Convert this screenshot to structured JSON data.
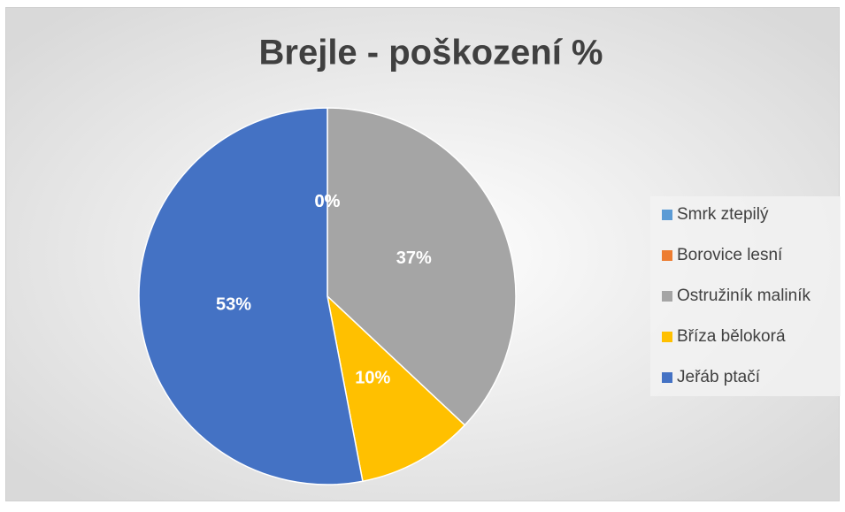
{
  "chart_data": {
    "type": "pie",
    "title": "Brejle - poškození %",
    "categories": [
      "Smrk ztepilý",
      "Borovice lesní",
      "Ostružiník maliník",
      "Bříza bělokorá",
      "Jeřáb ptačí"
    ],
    "values": [
      0,
      0,
      37,
      10,
      53
    ],
    "value_labels": [
      "0%",
      "0%",
      "37%",
      "10%",
      "53%"
    ],
    "colors": [
      "#5B9BD5",
      "#ED7D31",
      "#A5A5A5",
      "#FFC000",
      "#4472C4"
    ],
    "legend": "right"
  }
}
